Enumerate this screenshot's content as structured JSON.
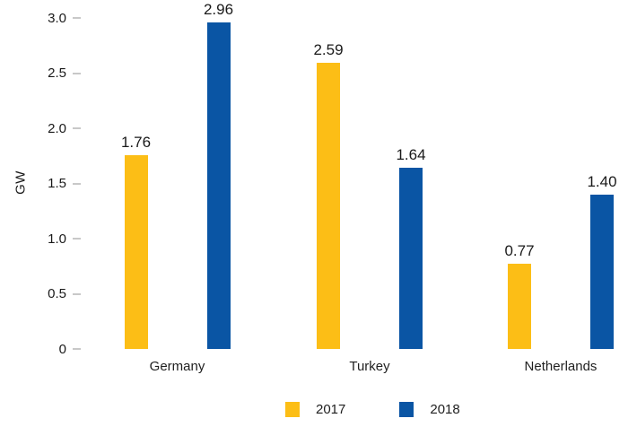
{
  "chart_data": {
    "type": "bar",
    "title": "",
    "xlabel": "",
    "ylabel": "GW",
    "categories": [
      "Germany",
      "Turkey",
      "Netherlands"
    ],
    "series": [
      {
        "name": "2017",
        "color": "#FCBE16",
        "values": [
          1.76,
          2.59,
          0.77
        ],
        "labels": [
          "1.76",
          "2.59",
          "0.77"
        ]
      },
      {
        "name": "2018",
        "color": "#0A55A4",
        "values": [
          2.96,
          1.64,
          1.4
        ],
        "labels": [
          "2.96",
          "1.64",
          "1.40"
        ]
      }
    ],
    "yticks": [
      {
        "label": "3.0",
        "value": 3.0
      },
      {
        "label": "2.5",
        "value": 2.5
      },
      {
        "label": "2.0",
        "value": 2.0
      },
      {
        "label": "1.5",
        "value": 1.5
      },
      {
        "label": "1.0",
        "value": 1.0
      },
      {
        "label": "0.5",
        "value": 0.5
      },
      {
        "label": "0",
        "value": 0.0
      }
    ],
    "ylim": [
      0,
      3.0
    ],
    "grid": false,
    "legend_position": "bottom"
  },
  "colors": {
    "background": "#ffffff",
    "bar_2017": "#FCBE16",
    "bar_2018": "#0A55A4",
    "tick_dash": "#c8c8c8",
    "text": "#1a1a1a"
  }
}
